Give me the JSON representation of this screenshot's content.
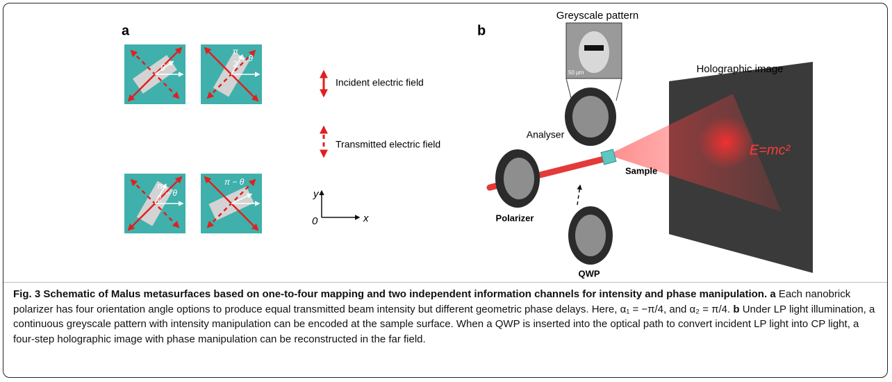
{
  "panel_a": {
    "label": "a",
    "tiles": [
      {
        "angle": "θ"
      },
      {
        "num": "π",
        "den": "2",
        "rest": "+ θ"
      },
      {
        "num": "π",
        "den": "2",
        "rest": "− θ"
      },
      {
        "angle": "π − θ"
      }
    ],
    "legend": [
      "Incident electric field",
      "Transmitted electric field"
    ],
    "axes": {
      "y": "y",
      "origin": "0",
      "x": "x"
    }
  },
  "panel_b": {
    "label": "b",
    "pattern_title": "Greyscale pattern",
    "scale_bar": "50 μm",
    "hologram_title": "Holographic image",
    "hologram_text": "E=mc²",
    "components": {
      "analyser": "Analyser",
      "sample": "Sample",
      "polarizer": "Polarizer",
      "qwp": "QWP"
    }
  },
  "caption": {
    "title": "Fig. 3 Schematic of Malus metasurfaces based on one-to-four mapping and two independent information channels for intensity and phase manipulation.",
    "a_label": "a",
    "a_text": "Each nanobrick polarizer has four orientation angle options to produce equal transmitted beam intensity but different geometric phase delays. Here, α₁ = −π/4, and α₂ = π/4.",
    "b_label": "b",
    "b_text": "Under LP light illumination, a continuous greyscale pattern with intensity manipulation can be encoded at the sample surface. When a QWP is inserted into the optical path to convert incident LP light into CP light, a four-step holographic image with phase manipulation can be reconstructed in the far field."
  }
}
